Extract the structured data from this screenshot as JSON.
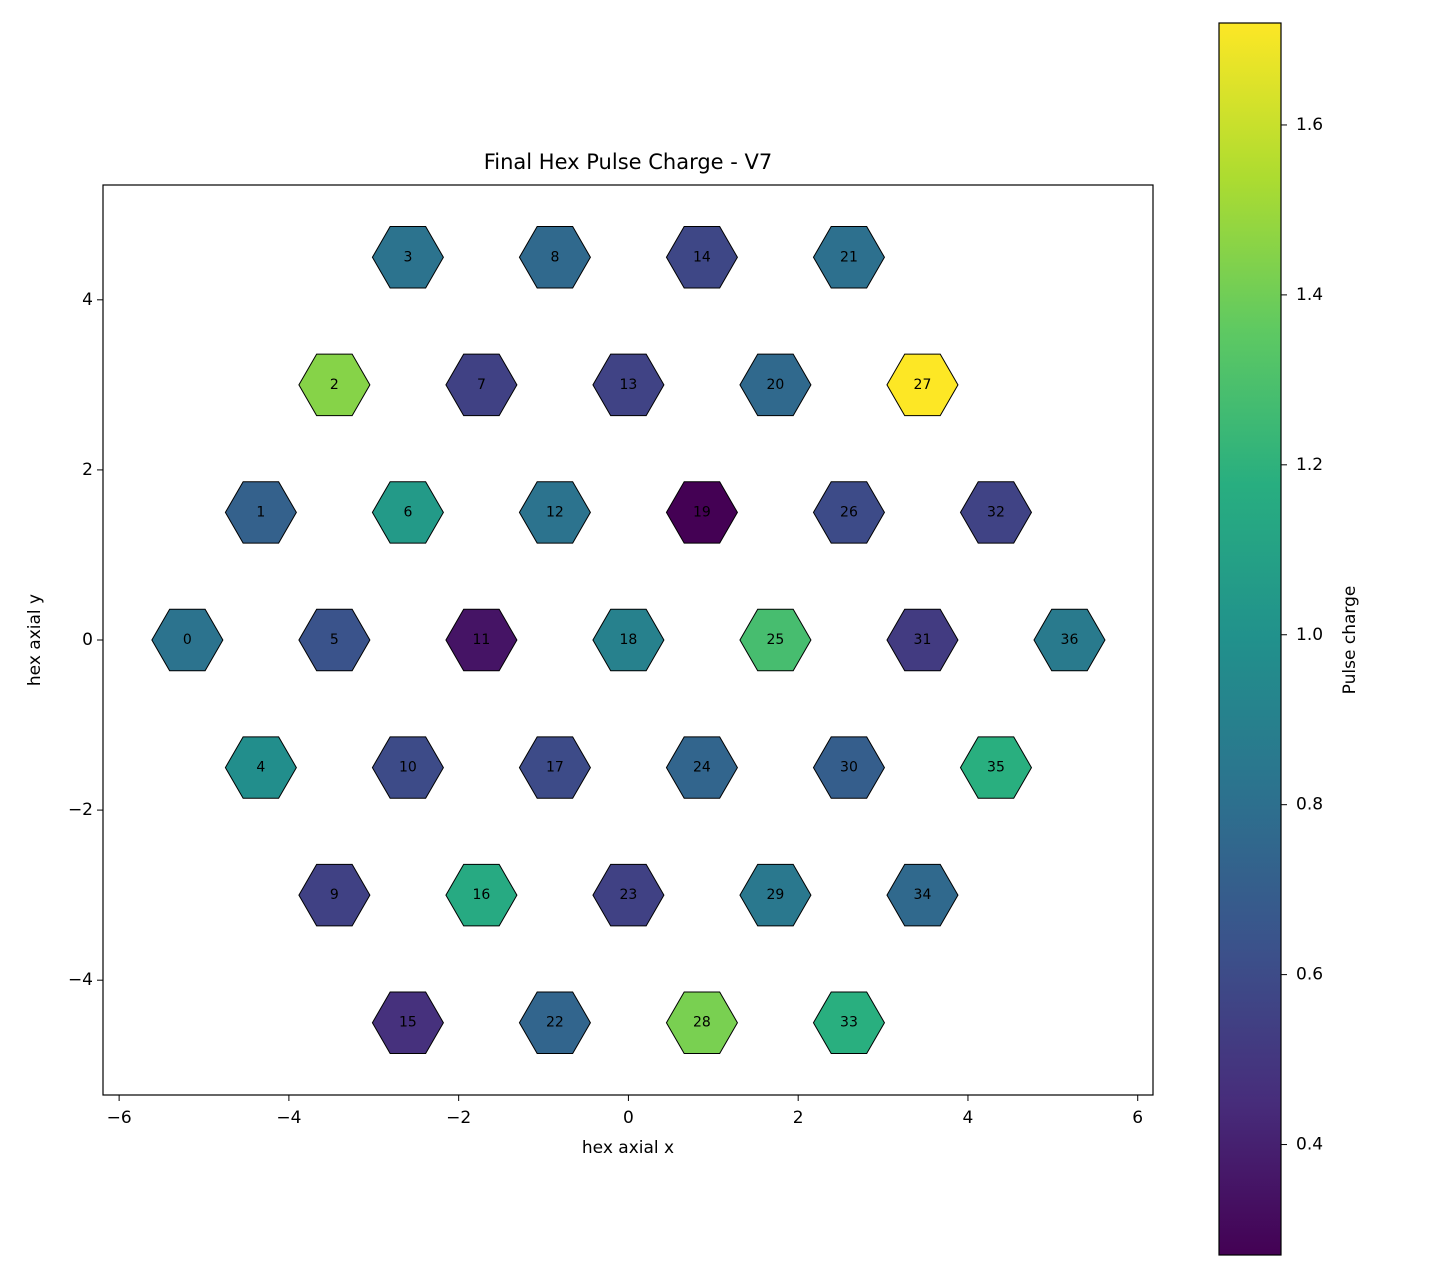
{
  "chart_data": {
    "type": "hex",
    "title": "Final Hex Pulse Charge - V7",
    "xlabel": "hex axial x",
    "ylabel": "hex axial y",
    "colorbar_label": "Pulse charge",
    "colormap": "viridis",
    "x": [
      -5.196,
      -4.33,
      -3.464,
      -2.598,
      -4.33,
      -3.464,
      -2.598,
      -1.732,
      -0.866,
      -3.464,
      -2.598,
      -1.732,
      -0.866,
      0,
      0.866,
      -2.598,
      -1.732,
      -0.866,
      0,
      0.866,
      1.732,
      2.598,
      -0.866,
      0,
      0.866,
      1.732,
      2.598,
      3.464,
      0.866,
      1.732,
      2.598,
      3.464,
      4.33,
      2.598,
      3.464,
      4.33,
      5.196
    ],
    "y": [
      0,
      1.5,
      3,
      4.5,
      -1.5,
      0,
      1.5,
      3,
      4.5,
      -3,
      -1.5,
      0,
      1.5,
      3,
      4.5,
      -4.5,
      -3,
      -1.5,
      0,
      1.5,
      3,
      4.5,
      -4.5,
      -3,
      -1.5,
      0,
      1.5,
      3,
      -4.5,
      -3,
      -1.5,
      0,
      1.5,
      -4.5,
      -3,
      -1.5,
      0
    ],
    "values": [
      0.82,
      0.72,
      1.45,
      0.82,
      0.98,
      0.64,
      1.05,
      0.55,
      0.76,
      0.55,
      0.6,
      0.35,
      0.82,
      0.56,
      0.58,
      0.47,
      1.15,
      0.6,
      0.9,
      0.27,
      0.76,
      0.8,
      0.74,
      0.55,
      0.74,
      1.28,
      0.6,
      1.72,
      1.42,
      0.85,
      0.7,
      0.52,
      0.56,
      1.18,
      0.76,
      1.18,
      0.86
    ],
    "labels": [
      0,
      1,
      2,
      3,
      4,
      5,
      6,
      7,
      8,
      9,
      10,
      11,
      12,
      13,
      14,
      15,
      16,
      17,
      18,
      19,
      20,
      21,
      22,
      23,
      24,
      25,
      26,
      27,
      28,
      29,
      30,
      31,
      32,
      33,
      34,
      35,
      36
    ],
    "xlim": [
      -6.19,
      6.18
    ],
    "ylim": [
      -5.35,
      5.35
    ],
    "xticks": [
      {
        "value": -6,
        "label": "−6"
      },
      {
        "value": -4,
        "label": "−4"
      },
      {
        "value": -2,
        "label": "−2"
      },
      0,
      2,
      4,
      6
    ],
    "yticks": [
      {
        "value": -4,
        "label": "−4"
      },
      {
        "value": -2,
        "label": "−2"
      },
      0,
      2,
      4
    ],
    "clim": [
      0.27,
      1.72
    ],
    "cticks": [
      0.4,
      0.6,
      0.8,
      1.0,
      1.2,
      1.4,
      1.6
    ]
  }
}
